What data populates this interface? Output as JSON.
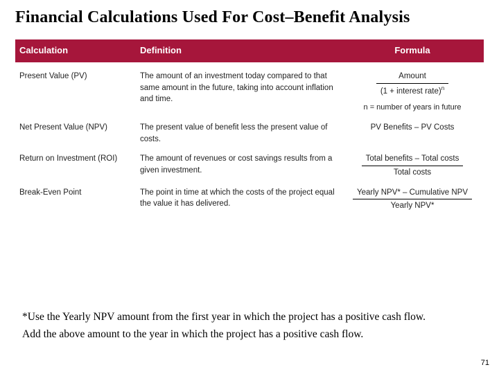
{
  "title": "Financial Calculations Used For Cost–Benefit Analysis",
  "table": {
    "header_bg": "#a6163b",
    "header_fg": "#ffffff",
    "columns": {
      "calc": "Calculation",
      "def": "Definition",
      "form": "Formula"
    },
    "rows": {
      "pv": {
        "calc": "Present Value (PV)",
        "def": "The amount of an investment today compared to that same amount in the future, taking into account inflation and time.",
        "formula_num": "Amount",
        "formula_den_pre": "(1 + interest rate)",
        "formula_den_sup": "n",
        "subnote": "n = number of years in future"
      },
      "npv": {
        "calc": "Net Present Value (NPV)",
        "def": "The present value of benefit less the present value of costs.",
        "formula_text": "PV Benefits – PV Costs"
      },
      "roi": {
        "calc": "Return on Investment (ROI)",
        "def": "The amount of revenues or cost savings results from a given investment.",
        "formula_num": "Total benefits – Total costs",
        "formula_den": "Total costs"
      },
      "bep": {
        "calc": "Break-Even Point",
        "def": "The point in time at which the costs of the project equal the value it has delivered.",
        "formula_num": "Yearly NPV* – Cumulative NPV",
        "formula_den": "Yearly NPV*"
      }
    }
  },
  "notes": {
    "line1": "*Use the Yearly NPV amount from the first year in which the project has a positive cash flow.",
    "line2": "Add the above amount to the year in which the project has a positive cash flow."
  },
  "page_number": "71"
}
